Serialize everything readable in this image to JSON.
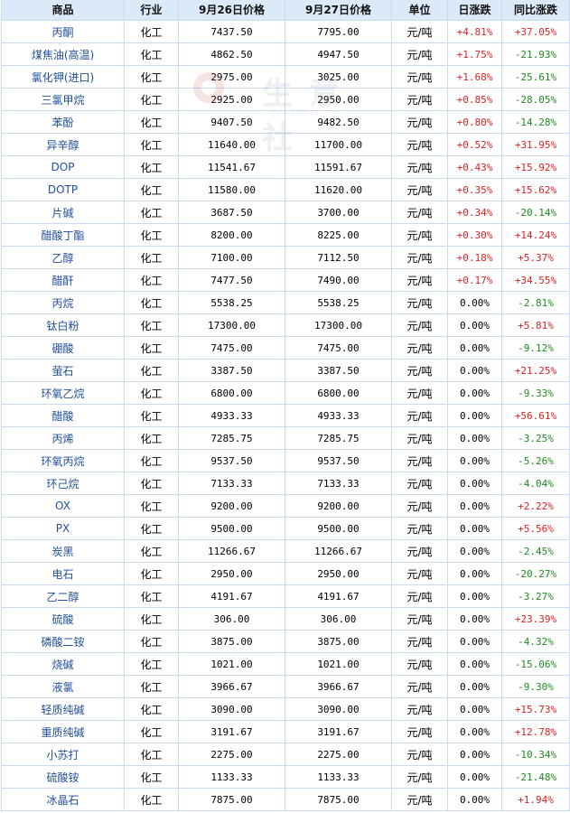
{
  "table": {
    "headers": [
      "商品",
      "行业",
      "9月26日价格",
      "9月27日价格",
      "单位",
      "日涨跌",
      "同比涨跌"
    ],
    "rows": [
      {
        "name": "丙酮",
        "industry": "化工",
        "p1": "7437.50",
        "p2": "7795.00",
        "unit": "元/吨",
        "daily": "+4.81%",
        "yoy": "+37.05%"
      },
      {
        "name": "煤焦油(高温)",
        "industry": "化工",
        "p1": "4862.50",
        "p2": "4947.50",
        "unit": "元/吨",
        "daily": "+1.75%",
        "yoy": "-21.93%"
      },
      {
        "name": "氯化钾(进口)",
        "industry": "化工",
        "p1": "2975.00",
        "p2": "3025.00",
        "unit": "元/吨",
        "daily": "+1.68%",
        "yoy": "-25.61%"
      },
      {
        "name": "三氯甲烷",
        "industry": "化工",
        "p1": "2925.00",
        "p2": "2950.00",
        "unit": "元/吨",
        "daily": "+0.85%",
        "yoy": "-28.05%"
      },
      {
        "name": "苯酚",
        "industry": "化工",
        "p1": "9407.50",
        "p2": "9482.50",
        "unit": "元/吨",
        "daily": "+0.80%",
        "yoy": "-14.28%"
      },
      {
        "name": "异辛醇",
        "industry": "化工",
        "p1": "11640.00",
        "p2": "11700.00",
        "unit": "元/吨",
        "daily": "+0.52%",
        "yoy": "+31.95%"
      },
      {
        "name": "DOP",
        "industry": "化工",
        "p1": "11541.67",
        "p2": "11591.67",
        "unit": "元/吨",
        "daily": "+0.43%",
        "yoy": "+15.92%"
      },
      {
        "name": "DOTP",
        "industry": "化工",
        "p1": "11580.00",
        "p2": "11620.00",
        "unit": "元/吨",
        "daily": "+0.35%",
        "yoy": "+15.62%"
      },
      {
        "name": "片碱",
        "industry": "化工",
        "p1": "3687.50",
        "p2": "3700.00",
        "unit": "元/吨",
        "daily": "+0.34%",
        "yoy": "-20.14%"
      },
      {
        "name": "醋酸丁酯",
        "industry": "化工",
        "p1": "8200.00",
        "p2": "8225.00",
        "unit": "元/吨",
        "daily": "+0.30%",
        "yoy": "+14.24%"
      },
      {
        "name": "乙醇",
        "industry": "化工",
        "p1": "7100.00",
        "p2": "7112.50",
        "unit": "元/吨",
        "daily": "+0.18%",
        "yoy": "+5.37%"
      },
      {
        "name": "醋酐",
        "industry": "化工",
        "p1": "7477.50",
        "p2": "7490.00",
        "unit": "元/吨",
        "daily": "+0.17%",
        "yoy": "+34.55%"
      },
      {
        "name": "丙烷",
        "industry": "化工",
        "p1": "5538.25",
        "p2": "5538.25",
        "unit": "元/吨",
        "daily": "0.00%",
        "yoy": "-2.81%"
      },
      {
        "name": "钛白粉",
        "industry": "化工",
        "p1": "17300.00",
        "p2": "17300.00",
        "unit": "元/吨",
        "daily": "0.00%",
        "yoy": "+5.81%"
      },
      {
        "name": "硼酸",
        "industry": "化工",
        "p1": "7475.00",
        "p2": "7475.00",
        "unit": "元/吨",
        "daily": "0.00%",
        "yoy": "-9.12%"
      },
      {
        "name": "萤石",
        "industry": "化工",
        "p1": "3387.50",
        "p2": "3387.50",
        "unit": "元/吨",
        "daily": "0.00%",
        "yoy": "+21.25%"
      },
      {
        "name": "环氧乙烷",
        "industry": "化工",
        "p1": "6800.00",
        "p2": "6800.00",
        "unit": "元/吨",
        "daily": "0.00%",
        "yoy": "-9.33%"
      },
      {
        "name": "醋酸",
        "industry": "化工",
        "p1": "4933.33",
        "p2": "4933.33",
        "unit": "元/吨",
        "daily": "0.00%",
        "yoy": "+56.61%"
      },
      {
        "name": "丙烯",
        "industry": "化工",
        "p1": "7285.75",
        "p2": "7285.75",
        "unit": "元/吨",
        "daily": "0.00%",
        "yoy": "-3.25%"
      },
      {
        "name": "环氧丙烷",
        "industry": "化工",
        "p1": "9537.50",
        "p2": "9537.50",
        "unit": "元/吨",
        "daily": "0.00%",
        "yoy": "-5.26%"
      },
      {
        "name": "环己烷",
        "industry": "化工",
        "p1": "7133.33",
        "p2": "7133.33",
        "unit": "元/吨",
        "daily": "0.00%",
        "yoy": "-4.04%"
      },
      {
        "name": "OX",
        "industry": "化工",
        "p1": "9200.00",
        "p2": "9200.00",
        "unit": "元/吨",
        "daily": "0.00%",
        "yoy": "+2.22%"
      },
      {
        "name": "PX",
        "industry": "化工",
        "p1": "9500.00",
        "p2": "9500.00",
        "unit": "元/吨",
        "daily": "0.00%",
        "yoy": "+5.56%"
      },
      {
        "name": "炭黑",
        "industry": "化工",
        "p1": "11266.67",
        "p2": "11266.67",
        "unit": "元/吨",
        "daily": "0.00%",
        "yoy": "-2.45%"
      },
      {
        "name": "电石",
        "industry": "化工",
        "p1": "2950.00",
        "p2": "2950.00",
        "unit": "元/吨",
        "daily": "0.00%",
        "yoy": "-20.27%"
      },
      {
        "name": "乙二醇",
        "industry": "化工",
        "p1": "4191.67",
        "p2": "4191.67",
        "unit": "元/吨",
        "daily": "0.00%",
        "yoy": "-3.27%"
      },
      {
        "name": "硫酸",
        "industry": "化工",
        "p1": "306.00",
        "p2": "306.00",
        "unit": "元/吨",
        "daily": "0.00%",
        "yoy": "+23.39%"
      },
      {
        "name": "磷酸二铵",
        "industry": "化工",
        "p1": "3875.00",
        "p2": "3875.00",
        "unit": "元/吨",
        "daily": "0.00%",
        "yoy": "-4.32%"
      },
      {
        "name": "烧碱",
        "industry": "化工",
        "p1": "1021.00",
        "p2": "1021.00",
        "unit": "元/吨",
        "daily": "0.00%",
        "yoy": "-15.06%"
      },
      {
        "name": "液氯",
        "industry": "化工",
        "p1": "3966.67",
        "p2": "3966.67",
        "unit": "元/吨",
        "daily": "0.00%",
        "yoy": "-9.30%"
      },
      {
        "name": "轻质纯碱",
        "industry": "化工",
        "p1": "3090.00",
        "p2": "3090.00",
        "unit": "元/吨",
        "daily": "0.00%",
        "yoy": "+15.73%"
      },
      {
        "name": "重质纯碱",
        "industry": "化工",
        "p1": "3191.67",
        "p2": "3191.67",
        "unit": "元/吨",
        "daily": "0.00%",
        "yoy": "+12.78%"
      },
      {
        "name": "小苏打",
        "industry": "化工",
        "p1": "2275.00",
        "p2": "2275.00",
        "unit": "元/吨",
        "daily": "0.00%",
        "yoy": "-10.34%"
      },
      {
        "name": "硫酸铵",
        "industry": "化工",
        "p1": "1133.33",
        "p2": "1133.33",
        "unit": "元/吨",
        "daily": "0.00%",
        "yoy": "-21.48%"
      },
      {
        "name": "冰晶石",
        "industry": "化工",
        "p1": "7875.00",
        "p2": "7875.00",
        "unit": "元/吨",
        "daily": "0.00%",
        "yoy": "+1.94%"
      }
    ]
  },
  "colors": {
    "up": "#e02020",
    "down": "#1f8a1f",
    "header_bg": "#dce9f8",
    "border": "#c9d9ee",
    "name_text": "#1f4e98"
  },
  "watermark": {
    "text": "生意社",
    "url": "www.100ppi.com",
    "logo_icon": "watermark-logo-icon"
  }
}
